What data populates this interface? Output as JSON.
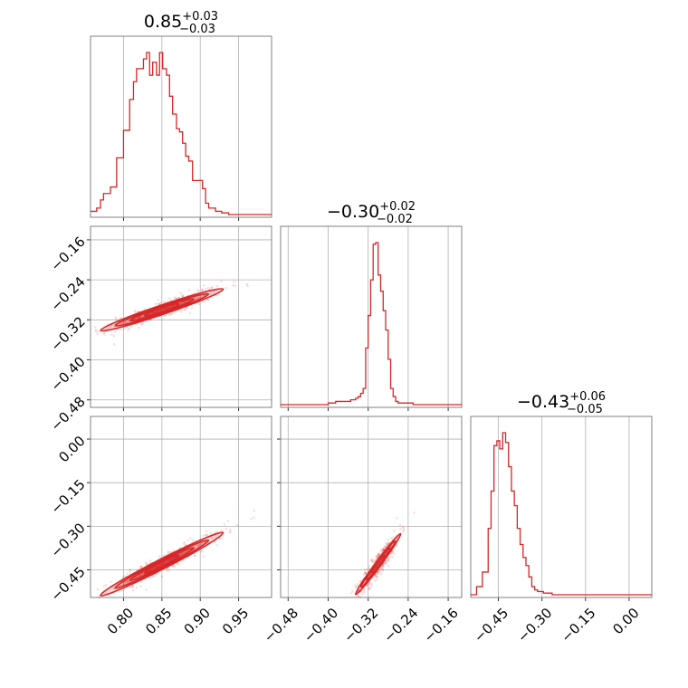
{
  "chart_data": {
    "type": "corner",
    "color": "#d62728",
    "parameters": [
      {
        "median": "0.85",
        "plus": "+0.03",
        "minus": "−0.03",
        "range": [
          0.757,
          0.993
        ],
        "ticks": [
          0.8,
          0.85,
          0.9,
          0.95
        ],
        "tick_labels": [
          "0.80",
          "0.85",
          "0.90",
          "0.95"
        ]
      },
      {
        "median": "−0.30",
        "plus": "+0.02",
        "minus": "−0.02",
        "range": [
          -0.495,
          -0.133
        ],
        "ticks": [
          -0.48,
          -0.4,
          -0.32,
          -0.24,
          -0.16
        ],
        "tick_labels": [
          "−0.48",
          "−0.40",
          "−0.32",
          "−0.24",
          "−0.16"
        ]
      },
      {
        "median": "−0.43",
        "plus": "+0.06",
        "minus": "−0.05",
        "range": [
          -0.545,
          0.078
        ],
        "ticks": [
          -0.45,
          -0.3,
          -0.15,
          0.0
        ],
        "tick_labels": [
          "−0.45",
          "−0.30",
          "−0.15",
          "0.00"
        ]
      }
    ],
    "histograms": [
      {
        "param": 0,
        "bins": [
          0.757,
          0.761,
          0.765,
          0.77,
          0.774,
          0.779,
          0.783,
          0.787,
          0.791,
          0.796,
          0.8,
          0.804,
          0.808,
          0.813,
          0.817,
          0.822,
          0.826,
          0.83,
          0.834,
          0.838,
          0.843,
          0.847,
          0.851,
          0.856,
          0.86,
          0.864,
          0.869,
          0.873,
          0.877,
          0.881,
          0.885,
          0.89,
          0.894,
          0.899,
          0.903,
          0.907,
          0.911,
          0.916,
          0.92,
          0.924,
          0.928,
          0.933,
          0.937,
          0.942,
          0.946,
          0.95,
          0.954,
          0.959,
          0.963,
          0.967,
          0.971,
          0.976,
          0.98,
          0.984,
          0.989,
          0.993
        ],
        "counts": [
          2,
          2,
          4,
          9,
          13,
          13,
          17,
          17,
          35,
          35,
          52,
          52,
          71,
          82,
          90,
          90,
          96,
          100,
          86,
          94,
          86,
          100,
          90,
          86,
          73,
          62,
          53,
          51,
          44,
          36,
          33,
          21,
          21,
          21,
          16,
          7,
          4,
          4,
          2,
          2,
          1,
          1,
          0,
          0,
          0,
          0,
          0,
          0,
          0,
          0,
          0,
          0,
          0,
          0,
          0
        ]
      },
      {
        "param": 1,
        "bins": [
          -0.495,
          -0.4,
          -0.385,
          -0.37,
          -0.355,
          -0.345,
          -0.34,
          -0.335,
          -0.33,
          -0.325,
          -0.32,
          -0.315,
          -0.31,
          -0.305,
          -0.3,
          -0.295,
          -0.29,
          -0.285,
          -0.28,
          -0.275,
          -0.27,
          -0.265,
          -0.26,
          -0.25,
          -0.24,
          -0.23,
          -0.133
        ],
        "counts": [
          0,
          1,
          2,
          2,
          3,
          4,
          5,
          7,
          10,
          35,
          55,
          77,
          99,
          100,
          80,
          70,
          58,
          46,
          28,
          10,
          5,
          2,
          1,
          1,
          1,
          0
        ]
      },
      {
        "param": 2,
        "bins": [
          -0.545,
          -0.535,
          -0.525,
          -0.515,
          -0.505,
          -0.495,
          -0.485,
          -0.475,
          -0.465,
          -0.455,
          -0.445,
          -0.435,
          -0.425,
          -0.415,
          -0.405,
          -0.395,
          -0.385,
          -0.375,
          -0.365,
          -0.355,
          -0.345,
          -0.335,
          -0.325,
          -0.315,
          -0.305,
          -0.295,
          -0.285,
          -0.275,
          -0.265,
          -0.255,
          -0.245,
          -0.235,
          -0.225,
          -0.215,
          -0.205,
          -0.195,
          -0.185,
          -0.175,
          -0.165,
          -0.155,
          -0.145,
          -0.135,
          -0.125,
          -0.115,
          -0.105,
          -0.095,
          -0.085,
          -0.075,
          -0.065,
          -0.055,
          -0.045,
          -0.035,
          -0.025,
          -0.015,
          -0.005,
          0.005,
          0.015,
          0.025,
          0.035,
          0.045,
          0.055,
          0.065,
          0.078
        ],
        "counts": [
          0,
          0,
          5,
          5,
          14,
          14,
          41,
          64,
          92,
          95,
          90,
          100,
          94,
          79,
          64,
          55,
          41,
          31,
          23,
          18,
          11,
          5,
          3,
          2,
          2,
          1,
          1,
          1,
          0,
          0,
          0,
          0,
          0,
          0,
          0,
          0,
          0,
          0,
          0,
          0,
          0,
          0,
          0,
          0,
          0,
          0,
          0,
          0,
          0,
          0,
          0,
          0,
          0,
          0,
          0,
          0,
          0,
          0,
          0,
          0,
          0,
          0
        ]
      }
    ],
    "joint_panels": [
      {
        "x_param": 0,
        "y_param": 1,
        "correlation": 0.92
      },
      {
        "x_param": 0,
        "y_param": 2,
        "correlation": 0.96
      },
      {
        "x_param": 1,
        "y_param": 2,
        "correlation": 0.93
      }
    ],
    "grid": true
  }
}
